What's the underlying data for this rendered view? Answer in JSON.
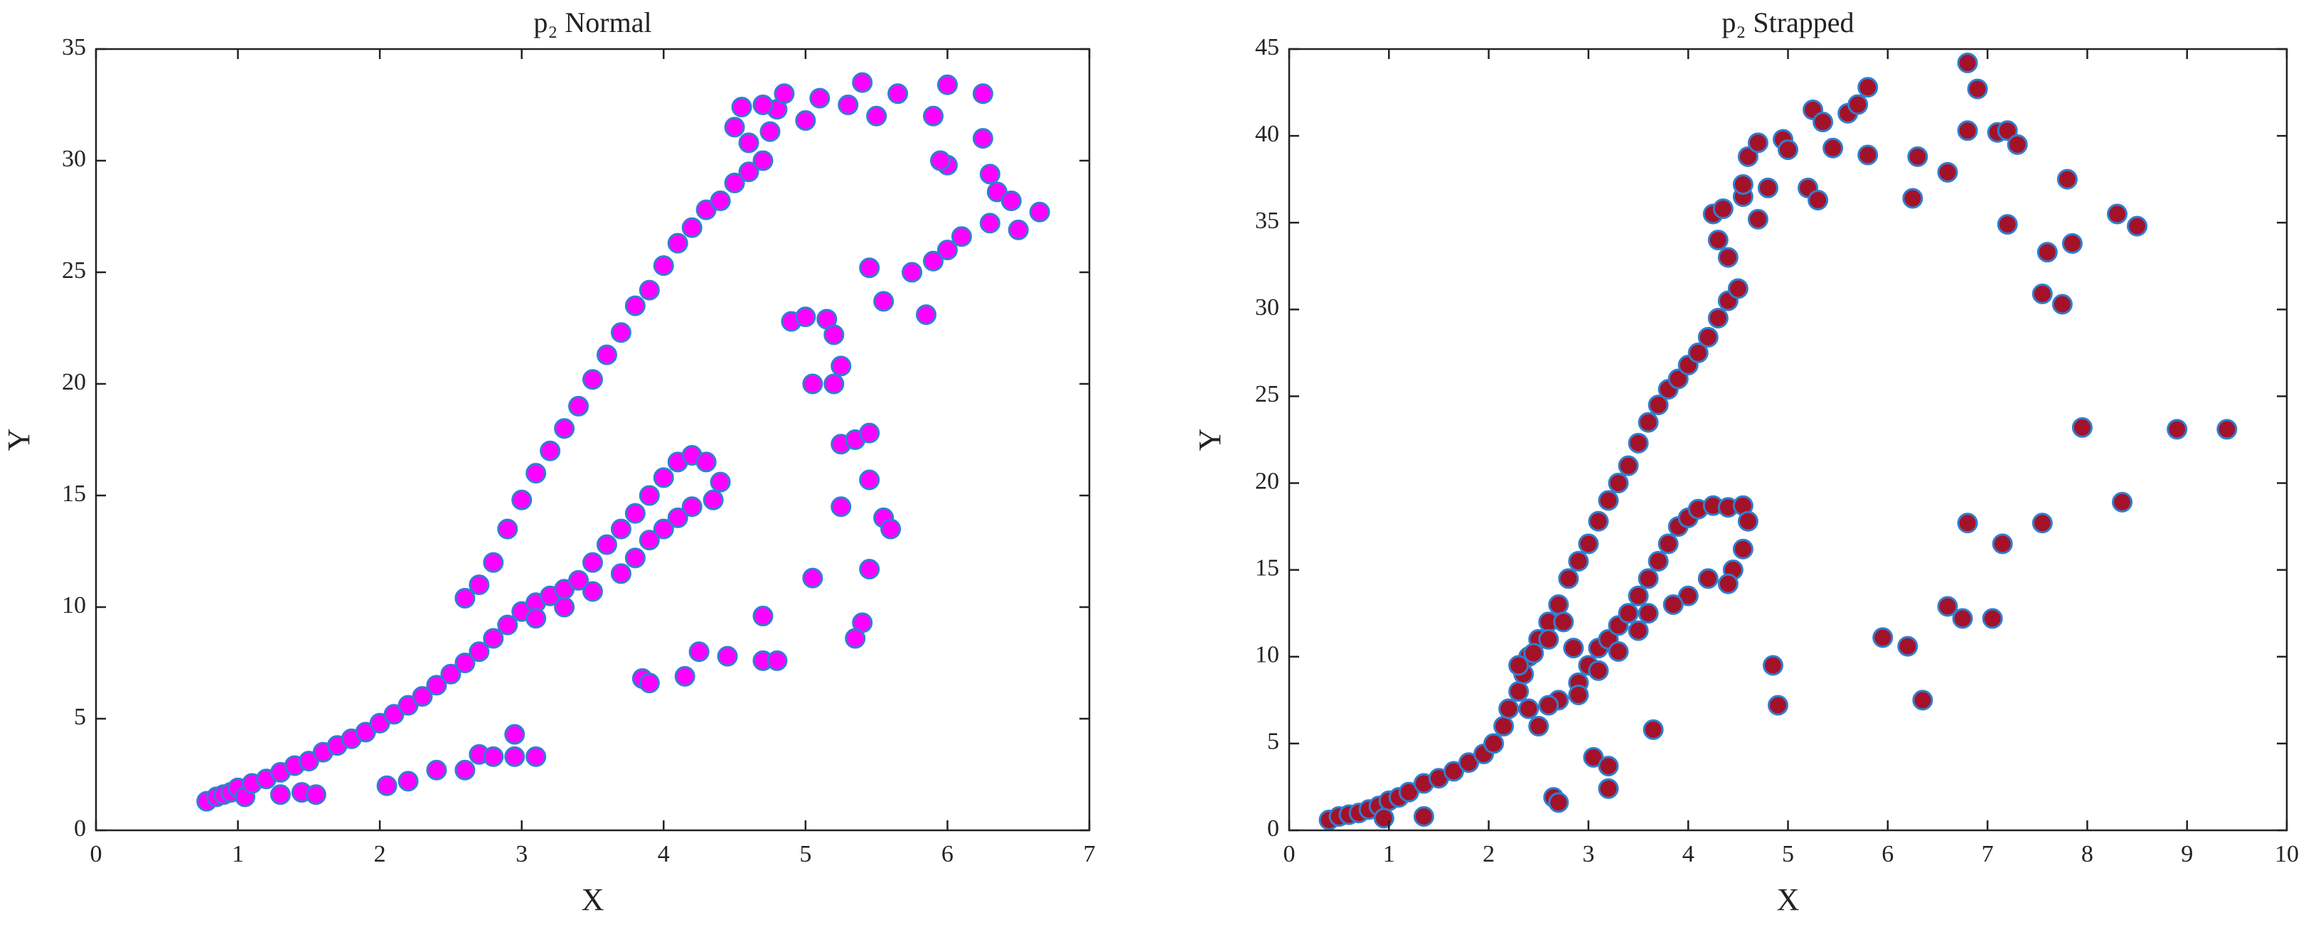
{
  "chart_data": [
    {
      "type": "scatter",
      "title": "p₂ Normal",
      "xlabel": "X",
      "ylabel": "Y",
      "color": "#ff00ff",
      "edge_color": "#2f7fd0",
      "xlim": [
        0,
        7
      ],
      "ylim": [
        0,
        35
      ],
      "xticks": [
        0,
        1,
        2,
        3,
        4,
        5,
        6,
        7
      ],
      "yticks": [
        0,
        5,
        10,
        15,
        20,
        25,
        30,
        35
      ],
      "grid": false,
      "x": [
        0.78,
        0.85,
        0.9,
        0.95,
        1.0,
        1.05,
        1.1,
        1.2,
        1.3,
        1.4,
        1.5,
        1.6,
        1.7,
        1.8,
        1.9,
        2.0,
        2.1,
        2.2,
        2.3,
        2.4,
        2.5,
        2.6,
        2.7,
        2.8,
        2.9,
        3.0,
        3.1,
        3.2,
        3.3,
        3.4,
        3.5,
        3.6,
        3.7,
        3.8,
        3.9,
        4.0,
        4.1,
        4.2,
        4.3,
        4.4,
        4.35,
        4.2,
        4.1,
        4.0,
        3.9,
        3.8,
        3.7,
        3.5,
        3.3,
        3.1,
        2.6,
        2.7,
        2.8,
        2.9,
        3.0,
        3.1,
        3.2,
        3.3,
        3.4,
        3.5,
        3.6,
        3.7,
        3.8,
        3.9,
        4.0,
        4.1,
        4.2,
        4.3,
        4.4,
        4.5,
        4.6,
        4.7,
        4.5,
        4.55,
        4.6,
        4.75,
        4.8,
        4.7,
        4.85,
        5.0,
        5.1,
        5.3,
        5.4,
        5.5,
        5.65,
        5.9,
        6.0,
        6.25,
        6.0,
        5.95,
        6.25,
        6.3,
        6.35,
        6.45,
        6.65,
        6.5,
        6.3,
        6.1,
        6.0,
        5.9,
        5.75,
        5.45,
        5.55,
        5.85,
        4.9,
        5.0,
        5.15,
        5.2,
        5.25,
        5.05,
        5.2,
        5.25,
        5.35,
        5.45,
        5.45,
        5.25,
        5.55,
        5.6,
        5.45,
        5.05,
        4.7,
        5.4,
        5.35,
        4.25,
        4.45,
        4.7,
        4.8,
        3.85,
        3.9,
        4.15,
        1.3,
        1.45,
        1.55,
        2.05,
        2.2,
        2.4,
        2.6,
        2.7,
        2.8,
        2.95,
        2.95,
        3.1
      ],
      "values": [
        1.3,
        1.5,
        1.6,
        1.7,
        1.9,
        1.5,
        2.1,
        2.3,
        2.6,
        2.9,
        3.1,
        3.5,
        3.8,
        4.1,
        4.4,
        4.8,
        5.2,
        5.6,
        6.0,
        6.5,
        7.0,
        7.5,
        8.0,
        8.6,
        9.2,
        9.8,
        10.2,
        10.5,
        10.8,
        11.2,
        12.0,
        12.8,
        13.5,
        14.2,
        15.0,
        15.8,
        16.5,
        16.8,
        16.5,
        15.6,
        14.8,
        14.5,
        14.0,
        13.5,
        13.0,
        12.2,
        11.5,
        10.7,
        10.0,
        9.5,
        10.4,
        11.0,
        12.0,
        13.5,
        14.8,
        16.0,
        17.0,
        18.0,
        19.0,
        20.2,
        21.3,
        22.3,
        23.5,
        24.2,
        25.3,
        26.3,
        27.0,
        27.8,
        28.2,
        29.0,
        29.5,
        30.0,
        31.5,
        32.4,
        30.8,
        31.3,
        32.3,
        32.5,
        33.0,
        31.8,
        32.8,
        32.5,
        33.5,
        32.0,
        33.0,
        32.0,
        33.4,
        33.0,
        29.8,
        30.0,
        31.0,
        29.4,
        28.6,
        28.2,
        27.7,
        26.9,
        27.2,
        26.6,
        26.0,
        25.5,
        25.0,
        25.2,
        23.7,
        23.1,
        22.8,
        23.0,
        22.9,
        22.2,
        20.8,
        20.0,
        20.0,
        17.3,
        17.5,
        17.8,
        15.7,
        14.5,
        14.0,
        13.5,
        11.7,
        11.3,
        9.6,
        9.3,
        8.6,
        8.0,
        7.8,
        7.6,
        7.6,
        6.8,
        6.6,
        6.9,
        1.6,
        1.7,
        1.6,
        2.0,
        2.2,
        2.7,
        2.7,
        3.4,
        3.3,
        4.3,
        3.3,
        3.3
      ]
    },
    {
      "type": "scatter",
      "title": "p₂ Strapped",
      "xlabel": "X",
      "ylabel": "Y",
      "color": "#a4122a",
      "edge_color": "#2f7fd0",
      "xlim": [
        0,
        10
      ],
      "ylim": [
        0,
        45
      ],
      "xticks": [
        0,
        1,
        2,
        3,
        4,
        5,
        6,
        7,
        8,
        9,
        10
      ],
      "yticks": [
        0,
        5,
        10,
        15,
        20,
        25,
        30,
        35,
        40,
        45
      ],
      "grid": false,
      "x": [
        0.4,
        0.5,
        0.6,
        0.7,
        0.8,
        0.9,
        1.0,
        1.1,
        1.2,
        1.35,
        1.5,
        1.65,
        1.8,
        1.95,
        2.05,
        2.15,
        2.2,
        2.3,
        2.35,
        2.4,
        2.5,
        2.6,
        2.7,
        2.8,
        2.9,
        3.0,
        3.1,
        3.2,
        3.3,
        3.4,
        3.5,
        3.6,
        3.7,
        3.8,
        3.9,
        4.0,
        4.1,
        4.2,
        4.3,
        4.4,
        4.5,
        4.4,
        4.3,
        4.25,
        4.35,
        4.55,
        4.7,
        4.55,
        4.6,
        4.7,
        4.8,
        4.95,
        5.0,
        5.2,
        5.25,
        5.35,
        5.3,
        5.45,
        5.6,
        5.7,
        5.8,
        5.8,
        6.25,
        6.3,
        6.6,
        6.8,
        6.9,
        6.8,
        7.1,
        7.2,
        7.3,
        7.2,
        7.8,
        7.85,
        7.6,
        7.55,
        7.75,
        8.3,
        8.5,
        7.95,
        8.9,
        9.4,
        8.35,
        7.55,
        6.8,
        7.15,
        6.6,
        6.75,
        7.05,
        5.95,
        6.2,
        6.35,
        4.85,
        4.9,
        3.65,
        3.05,
        3.2,
        3.2,
        2.65,
        2.7,
        0.95,
        1.35,
        2.5,
        2.7,
        2.9,
        3.0,
        3.1,
        3.2,
        3.3,
        3.4,
        3.5,
        3.6,
        3.7,
        3.8,
        3.9,
        4.0,
        4.1,
        4.25,
        4.4,
        4.55,
        4.6,
        4.55,
        4.45,
        4.4,
        4.2,
        4.0,
        3.85,
        3.6,
        3.5,
        3.3,
        3.1,
        2.9,
        2.6,
        2.4,
        2.3,
        2.45,
        2.6,
        2.75,
        2.85
      ],
      "values": [
        0.6,
        0.8,
        0.9,
        1.0,
        1.2,
        1.4,
        1.7,
        1.9,
        2.2,
        2.7,
        3.0,
        3.4,
        3.9,
        4.4,
        5.0,
        6.0,
        7.0,
        8.0,
        9.0,
        10.0,
        11.0,
        12.0,
        13.0,
        14.5,
        15.5,
        16.5,
        17.8,
        19.0,
        20.0,
        21.0,
        22.3,
        23.5,
        24.5,
        25.4,
        26.0,
        26.8,
        27.5,
        28.4,
        29.5,
        30.5,
        31.2,
        33.0,
        34.0,
        35.5,
        35.8,
        36.5,
        35.2,
        37.2,
        38.8,
        39.6,
        37.0,
        39.8,
        39.2,
        37.0,
        41.5,
        40.8,
        36.3,
        39.3,
        41.3,
        41.8,
        42.8,
        38.9,
        36.4,
        38.8,
        37.9,
        44.2,
        42.7,
        40.3,
        40.2,
        40.3,
        39.5,
        34.9,
        37.5,
        33.8,
        33.3,
        30.9,
        30.3,
        35.5,
        34.8,
        23.2,
        23.1,
        23.1,
        18.9,
        17.7,
        17.7,
        16.5,
        12.9,
        12.2,
        12.2,
        11.1,
        10.6,
        7.5,
        9.5,
        7.2,
        5.8,
        4.2,
        3.7,
        2.4,
        1.9,
        1.6,
        0.7,
        0.8,
        6.0,
        7.5,
        8.5,
        9.5,
        10.5,
        11.0,
        11.8,
        12.5,
        13.5,
        14.5,
        15.5,
        16.5,
        17.5,
        18.0,
        18.5,
        18.7,
        18.6,
        18.7,
        17.8,
        16.2,
        15.0,
        14.2,
        14.5,
        13.5,
        13.0,
        12.5,
        11.5,
        10.3,
        9.2,
        7.8,
        7.2,
        7.0,
        9.5,
        10.2,
        11.0,
        12.0,
        10.5
      ]
    }
  ]
}
